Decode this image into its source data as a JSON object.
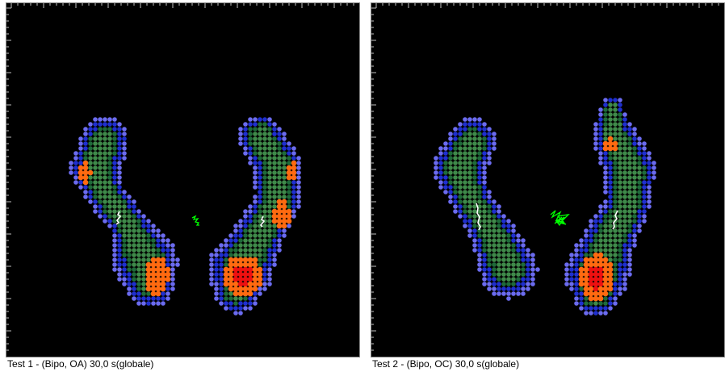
{
  "colors": {
    "background": "#000000",
    "frame": "#8a8a8a",
    "ticks": "#bfbfbf",
    "pressure_levels": [
      "#6b6bf0",
      "#1f2fd0",
      "#1f6b3a",
      "#3f8a4a",
      "#ff6a10",
      "#ee1010"
    ],
    "path_left": "#ffffff",
    "path_cop": "#00ff00"
  },
  "tests": [
    {
      "caption": "Test 1 - (Bipo, OA) 30,0 s(globale)"
    },
    {
      "caption": "Test 2 - (Bipo, OC) 30,0 s(globale)"
    }
  ]
}
